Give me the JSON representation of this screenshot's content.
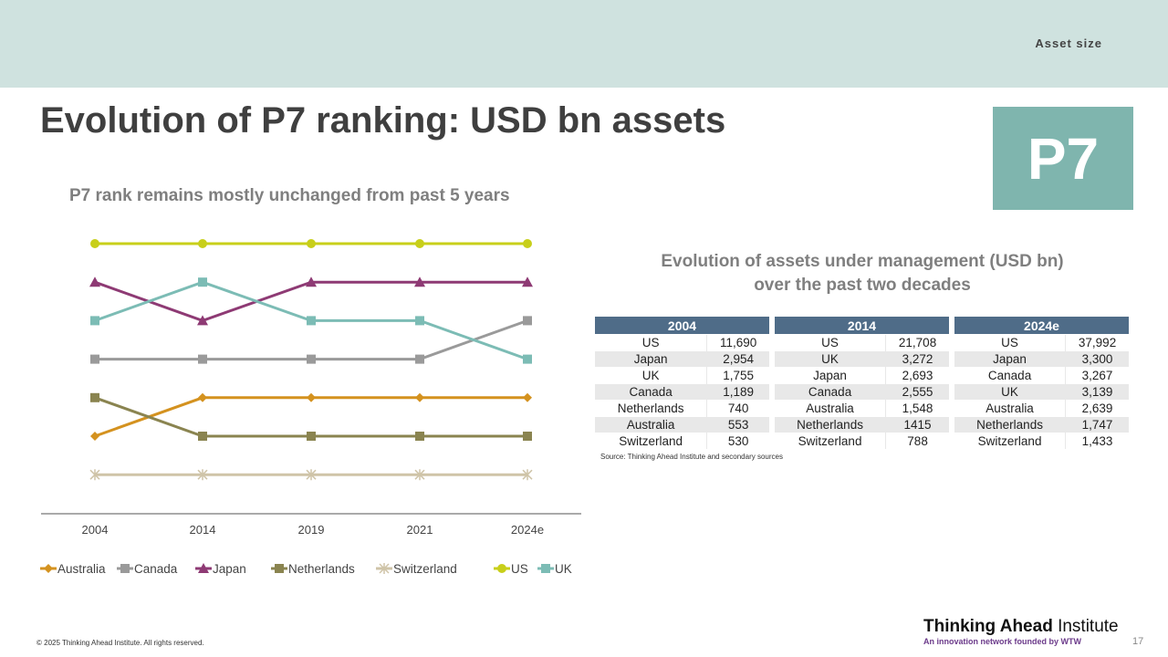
{
  "header": {
    "section": "Asset size",
    "title": "Evolution of P7 ranking: USD bn assets",
    "badge": "P7"
  },
  "chart_subtitle": "P7 rank remains mostly unchanged from past 5 years",
  "chart_data": {
    "type": "line",
    "title": "P7 rank remains mostly unchanged from past 5 years",
    "x": [
      "2004",
      "2014",
      "2019",
      "2021",
      "2024e"
    ],
    "y_meaning": "rank (1 = top)",
    "ylim": [
      1,
      7
    ],
    "y_inverted": true,
    "grid": false,
    "legend": "bottom",
    "series": [
      {
        "name": "Australia",
        "values": [
          6,
          5,
          5,
          5,
          5
        ],
        "color": "#d4921f",
        "marker": "diamond"
      },
      {
        "name": "Canada",
        "values": [
          4,
          4,
          4,
          4,
          3
        ],
        "color": "#9a9a9a",
        "marker": "square"
      },
      {
        "name": "Japan",
        "values": [
          2,
          3,
          2,
          2,
          2
        ],
        "color": "#8e3a74",
        "marker": "triangle"
      },
      {
        "name": "Netherlands",
        "values": [
          5,
          6,
          6,
          6,
          6
        ],
        "color": "#8a8450",
        "marker": "square"
      },
      {
        "name": "Switzerland",
        "values": [
          7,
          7,
          7,
          7,
          7
        ],
        "color": "#cfc4a8",
        "marker": "star"
      },
      {
        "name": "US",
        "values": [
          1,
          1,
          1,
          1,
          1
        ],
        "color": "#c8cf1a",
        "marker": "circle"
      },
      {
        "name": "UK",
        "values": [
          3,
          2,
          3,
          3,
          4
        ],
        "color": "#7cbcb5",
        "marker": "square"
      }
    ]
  },
  "tables": {
    "title_line1": "Evolution of assets under management (USD bn)",
    "title_line2": "over the past two decades",
    "items": [
      {
        "year": "2004",
        "rows": [
          [
            "US",
            "11,690"
          ],
          [
            "Japan",
            "2,954"
          ],
          [
            "UK",
            "1,755"
          ],
          [
            "Canada",
            "1,189"
          ],
          [
            "Netherlands",
            "740"
          ],
          [
            "Australia",
            "553"
          ],
          [
            "Switzerland",
            "530"
          ]
        ]
      },
      {
        "year": "2014",
        "rows": [
          [
            "US",
            "21,708"
          ],
          [
            "UK",
            "3,272"
          ],
          [
            "Japan",
            "2,693"
          ],
          [
            "Canada",
            "2,555"
          ],
          [
            "Australia",
            "1,548"
          ],
          [
            "Netherlands",
            "1415"
          ],
          [
            "Switzerland",
            "788"
          ]
        ]
      },
      {
        "year": "2024e",
        "rows": [
          [
            "US",
            "37,992"
          ],
          [
            "Japan",
            "3,300"
          ],
          [
            "Canada",
            "3,267"
          ],
          [
            "UK",
            "3,139"
          ],
          [
            "Australia",
            "2,639"
          ],
          [
            "Netherlands",
            "1,747"
          ],
          [
            "Switzerland",
            "1,433"
          ]
        ]
      }
    ],
    "source": "Source: Thinking Ahead Institute and secondary sources"
  },
  "footer": {
    "copyright": "© 2025 Thinking Ahead Institute. All rights reserved.",
    "logo_name": "Thinking Ahead Institute",
    "logo_tagline": "An innovation network founded by WTW",
    "page": "17"
  }
}
